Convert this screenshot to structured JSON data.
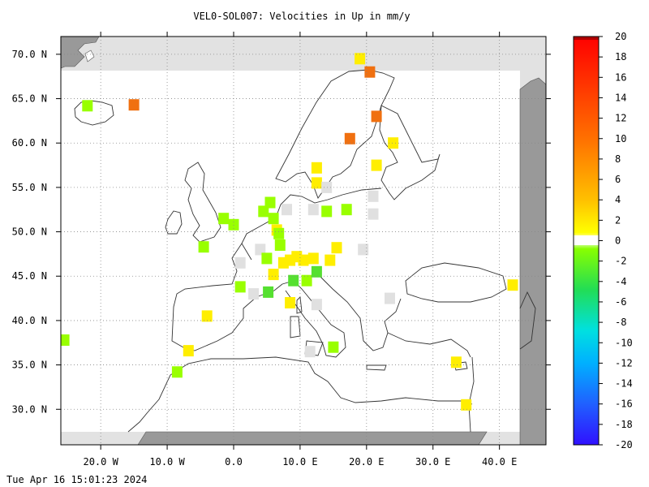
{
  "title": "VEL0-SOL007: Velocities in Up in mm/y",
  "footer": "Tue Apr 16 15:01:23 2024",
  "map": {
    "lon_range": [
      -26,
      47
    ],
    "lat_range": [
      26,
      72
    ],
    "lon_ticks": [
      -20,
      -10,
      0,
      10,
      20,
      30,
      40
    ],
    "lon_tick_labels": [
      "20.0 W",
      "10.0 W",
      "0.0",
      "10.0 E",
      "20.0 E",
      "30.0 E",
      "40.0 E"
    ],
    "lat_ticks": [
      30,
      35,
      40,
      45,
      50,
      55,
      60,
      65,
      70
    ],
    "lat_tick_labels": [
      "30.0 N",
      "35.0 N",
      "40.0 N",
      "45.0 N",
      "50.0 N",
      "55.0 N",
      "60.0 N",
      "65.0 N",
      "70.0 N"
    ],
    "grid": "dotted"
  },
  "colorbar": {
    "min": -20,
    "max": 20,
    "labels": [
      "20",
      "18",
      "16",
      "14",
      "12",
      "10",
      "8",
      "6",
      "4",
      "2",
      "0",
      "-2",
      "-4",
      "-6",
      "-8",
      "-10",
      "-12",
      "-14",
      "-16",
      "-18",
      "-20"
    ]
  },
  "cells": [
    {
      "lon": -25.5,
      "lat": 37.8,
      "v": -1.5
    },
    {
      "lon": -22.0,
      "lat": 64.2,
      "v": -1.5
    },
    {
      "lon": -15.0,
      "lat": 64.3,
      "v": 11.0
    },
    {
      "lon": -8.5,
      "lat": 34.2,
      "v": -1.5
    },
    {
      "lon": -6.8,
      "lat": 36.6,
      "v": 3.0
    },
    {
      "lon": -4.5,
      "lat": 48.3,
      "v": -1.5
    },
    {
      "lon": -4.0,
      "lat": 40.5,
      "v": 3.0
    },
    {
      "lon": -1.5,
      "lat": 51.5,
      "v": -1.0
    },
    {
      "lon": 0.0,
      "lat": 50.8,
      "v": -1.5
    },
    {
      "lon": 1.0,
      "lat": 46.5,
      "v": 0.3
    },
    {
      "lon": 1.0,
      "lat": 43.8,
      "v": -1.5
    },
    {
      "lon": 3.0,
      "lat": 43.0,
      "v": 0.3
    },
    {
      "lon": 4.0,
      "lat": 48.0,
      "v": 0.3
    },
    {
      "lon": 4.5,
      "lat": 52.3,
      "v": -1.5
    },
    {
      "lon": 5.0,
      "lat": 47.0,
      "v": -1.5
    },
    {
      "lon": 5.2,
      "lat": 43.2,
      "v": -2.0
    },
    {
      "lon": 5.5,
      "lat": 53.3,
      "v": -1.5
    },
    {
      "lon": 6.0,
      "lat": 51.5,
      "v": -1.5
    },
    {
      "lon": 6.0,
      "lat": 45.2,
      "v": 2.5
    },
    {
      "lon": 6.5,
      "lat": 50.2,
      "v": 3.5
    },
    {
      "lon": 6.8,
      "lat": 49.8,
      "v": -1.5
    },
    {
      "lon": 7.0,
      "lat": 48.5,
      "v": -1.0
    },
    {
      "lon": 7.5,
      "lat": 46.5,
      "v": 3.0
    },
    {
      "lon": 8.0,
      "lat": 52.5,
      "v": 0.3
    },
    {
      "lon": 8.5,
      "lat": 46.8,
      "v": 3.5
    },
    {
      "lon": 8.5,
      "lat": 42.0,
      "v": 3.0
    },
    {
      "lon": 9.0,
      "lat": 44.5,
      "v": -2.0
    },
    {
      "lon": 9.5,
      "lat": 47.2,
      "v": 3.0
    },
    {
      "lon": 10.5,
      "lat": 46.8,
      "v": 3.0
    },
    {
      "lon": 11.0,
      "lat": 44.5,
      "v": -1.5
    },
    {
      "lon": 12.0,
      "lat": 47.0,
      "v": 2.5
    },
    {
      "lon": 12.0,
      "lat": 52.5,
      "v": 0.3
    },
    {
      "lon": 12.5,
      "lat": 45.5,
      "v": -2.0
    },
    {
      "lon": 12.5,
      "lat": 41.8,
      "v": 0.3
    },
    {
      "lon": 11.5,
      "lat": 36.5,
      "v": 0.3
    },
    {
      "lon": 12.5,
      "lat": 57.2,
      "v": 3.0
    },
    {
      "lon": 12.5,
      "lat": 55.5,
      "v": 3.0
    },
    {
      "lon": 14.0,
      "lat": 52.3,
      "v": -1.5
    },
    {
      "lon": 14.5,
      "lat": 46.8,
      "v": 2.5
    },
    {
      "lon": 14.0,
      "lat": 55.0,
      "v": 0.3
    },
    {
      "lon": 15.0,
      "lat": 37.0,
      "v": -1.5
    },
    {
      "lon": 15.5,
      "lat": 48.2,
      "v": 3.0
    },
    {
      "lon": 17.0,
      "lat": 52.5,
      "v": -1.5
    },
    {
      "lon": 17.5,
      "lat": 60.5,
      "v": 10.0
    },
    {
      "lon": 19.0,
      "lat": 69.5,
      "v": 3.0
    },
    {
      "lon": 19.5,
      "lat": 48.0,
      "v": 0.3
    },
    {
      "lon": 20.5,
      "lat": 68.0,
      "v": 9.5
    },
    {
      "lon": 21.0,
      "lat": 54.0,
      "v": 0.3
    },
    {
      "lon": 21.0,
      "lat": 52.0,
      "v": 0.3
    },
    {
      "lon": 21.5,
      "lat": 63.0,
      "v": 10.0
    },
    {
      "lon": 21.5,
      "lat": 57.5,
      "v": 3.0
    },
    {
      "lon": 23.5,
      "lat": 42.5,
      "v": 0.3
    },
    {
      "lon": 24.0,
      "lat": 60.0,
      "v": 3.5
    },
    {
      "lon": 33.5,
      "lat": 35.3,
      "v": 3.0
    },
    {
      "lon": 35.0,
      "lat": 30.5,
      "v": 3.0
    },
    {
      "lon": 42.0,
      "lat": 44.0,
      "v": 3.0
    }
  ]
}
